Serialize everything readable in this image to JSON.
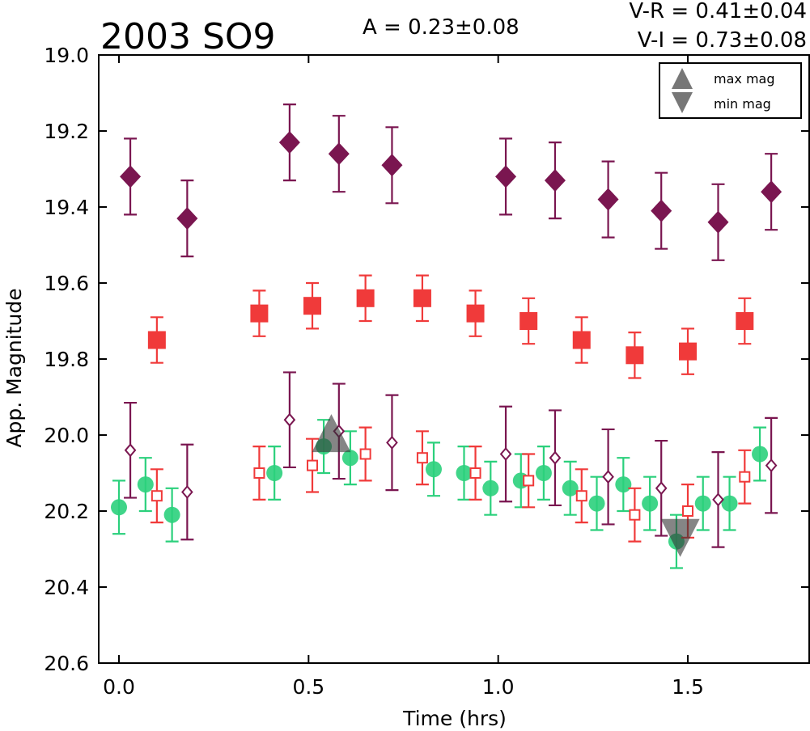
{
  "chart_data": {
    "type": "scatter",
    "title": "2003 SO9",
    "info": {
      "amplitude": "A  = 0.23±0.08",
      "v_minus_r": "V-R = 0.41±0.04",
      "v_minus_i": "V-I  = 0.73±0.08"
    },
    "xlabel": "Time (hrs)",
    "ylabel": "App. Magnitude",
    "xlim": [
      -0.05,
      1.8
    ],
    "ylim": [
      20.6,
      19.0
    ],
    "y_inverted": true,
    "grid": false,
    "xticks": [
      0.0,
      0.5,
      1.0,
      1.5
    ],
    "xtick_labels": [
      "0.0",
      "0.5",
      "1.0",
      "1.5"
    ],
    "yticks": [
      19.0,
      19.2,
      19.4,
      19.6,
      19.8,
      20.0,
      20.2,
      20.4,
      20.6
    ],
    "ytick_labels": [
      "19.0",
      "19.2",
      "19.4",
      "19.6",
      "19.8",
      "20.0",
      "20.2",
      "20.4",
      "20.6"
    ],
    "legend": {
      "placement": "top-right",
      "entries": [
        {
          "label": "max mag",
          "marker": "triangle-up",
          "color": "#555555"
        },
        {
          "label": "min mag",
          "marker": "triangle-down",
          "color": "#555555"
        }
      ]
    },
    "series": [
      {
        "marker": "diamond-filled",
        "color": "#7a1650",
        "x": [
          0.03,
          0.18,
          0.45,
          0.58,
          0.72,
          1.02,
          1.15,
          1.29,
          1.43,
          1.58,
          1.72
        ],
        "y": [
          19.32,
          19.43,
          19.23,
          19.26,
          19.29,
          19.32,
          19.33,
          19.38,
          19.41,
          19.44,
          19.36
        ],
        "err": 0.1
      },
      {
        "marker": "square-filled",
        "color": "#f03a3a",
        "x": [
          0.1,
          0.37,
          0.51,
          0.65,
          0.8,
          0.94,
          1.08,
          1.22,
          1.36,
          1.5,
          1.65
        ],
        "y": [
          19.75,
          19.68,
          19.66,
          19.64,
          19.64,
          19.68,
          19.7,
          19.75,
          19.79,
          19.78,
          19.7
        ],
        "err": 0.06
      },
      {
        "marker": "circle-filled",
        "color": "#2bd07c",
        "x": [
          0.0,
          0.07,
          0.14,
          0.41,
          0.54,
          0.61,
          0.83,
          0.91,
          0.98,
          1.06,
          1.12,
          1.19,
          1.26,
          1.33,
          1.4,
          1.47,
          1.54,
          1.61,
          1.69
        ],
        "y": [
          20.19,
          20.13,
          20.21,
          20.1,
          20.03,
          20.06,
          20.09,
          20.1,
          20.14,
          20.12,
          20.1,
          20.14,
          20.18,
          20.13,
          20.18,
          20.28,
          20.18,
          20.18,
          20.05
        ],
        "err": 0.07
      },
      {
        "marker": "square-open",
        "color": "#f03a3a",
        "x": [
          0.1,
          0.37,
          0.51,
          0.65,
          0.8,
          0.94,
          1.08,
          1.22,
          1.36,
          1.5,
          1.65
        ],
        "y": [
          20.16,
          20.1,
          20.08,
          20.05,
          20.06,
          20.1,
          20.12,
          20.16,
          20.21,
          20.2,
          20.11
        ],
        "err": 0.07
      },
      {
        "marker": "diamond-open",
        "color": "#7a1650",
        "x": [
          0.03,
          0.18,
          0.45,
          0.58,
          0.72,
          1.02,
          1.15,
          1.29,
          1.43,
          1.58,
          1.72
        ],
        "y": [
          20.04,
          20.15,
          19.96,
          19.99,
          20.02,
          20.05,
          20.06,
          20.11,
          20.14,
          20.17,
          20.08
        ],
        "err": 0.125
      }
    ],
    "extrema": [
      {
        "kind": "max mag",
        "marker": "triangle-up",
        "x": 0.56,
        "y": 20.03
      },
      {
        "kind": "min mag",
        "marker": "triangle-down",
        "x": 1.48,
        "y": 20.24
      }
    ]
  }
}
